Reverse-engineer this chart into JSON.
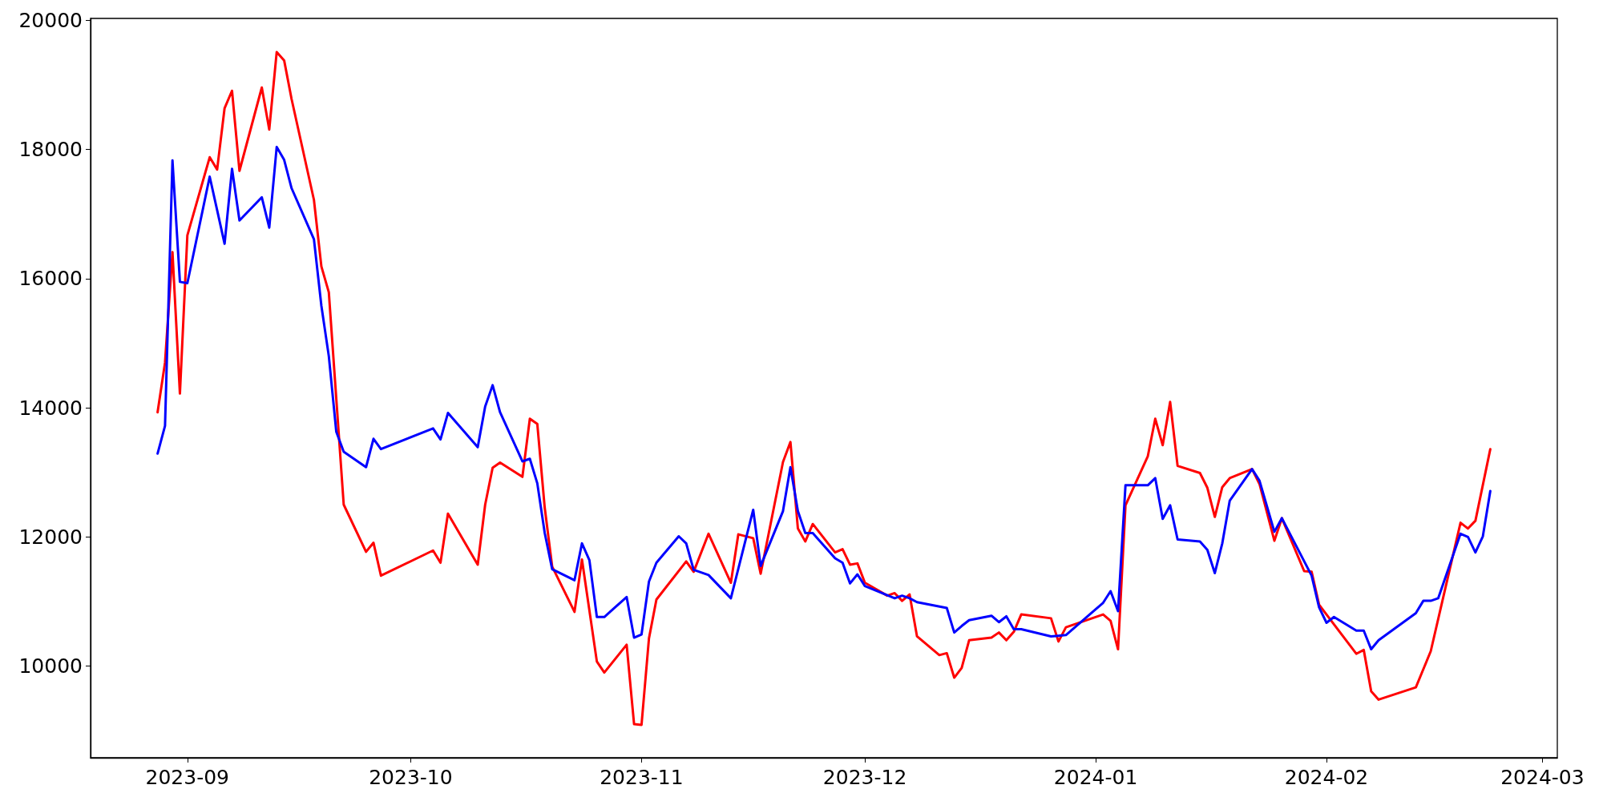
{
  "chart_data": {
    "type": "line",
    "grid": false,
    "marker": "none",
    "line_style": "solid",
    "xlim": [
      "2023-08-19",
      "2024-03-03"
    ],
    "xticks": [
      {
        "value": "2023-09-01",
        "label": "2023-09"
      },
      {
        "value": "2023-10-01",
        "label": "2023-10"
      },
      {
        "value": "2023-11-01",
        "label": "2023-11"
      },
      {
        "value": "2023-12-01",
        "label": "2023-12"
      },
      {
        "value": "2024-01-01",
        "label": "2024-01"
      },
      {
        "value": "2024-02-01",
        "label": "2024-02"
      },
      {
        "value": "2024-03-01",
        "label": "2024-03"
      }
    ],
    "ylim": [
      8580,
      20030
    ],
    "yticks": [
      10000,
      12000,
      14000,
      16000,
      18000,
      20000
    ],
    "series": [
      {
        "color": "#ff0000",
        "x": [
          "2023-08-28",
          "2023-08-29",
          "2023-08-30",
          "2023-08-31",
          "2023-09-01",
          "2023-09-04",
          "2023-09-05",
          "2023-09-06",
          "2023-09-07",
          "2023-09-08",
          "2023-09-11",
          "2023-09-12",
          "2023-09-13",
          "2023-09-14",
          "2023-09-15",
          "2023-09-18",
          "2023-09-19",
          "2023-09-20",
          "2023-09-22",
          "2023-09-25",
          "2023-09-26",
          "2023-09-27",
          "2023-10-04",
          "2023-10-05",
          "2023-10-06",
          "2023-10-10",
          "2023-10-11",
          "2023-10-12",
          "2023-10-13",
          "2023-10-16",
          "2023-10-17",
          "2023-10-18",
          "2023-10-19",
          "2023-10-20",
          "2023-10-23",
          "2023-10-24",
          "2023-10-26",
          "2023-10-27",
          "2023-10-30",
          "2023-10-31",
          "2023-11-01",
          "2023-11-02",
          "2023-11-03",
          "2023-11-07",
          "2023-11-08",
          "2023-11-10",
          "2023-11-13",
          "2023-11-14",
          "2023-11-16",
          "2023-11-17",
          "2023-11-20",
          "2023-11-21",
          "2023-11-22",
          "2023-11-23",
          "2023-11-24",
          "2023-11-27",
          "2023-11-28",
          "2023-11-29",
          "2023-11-30",
          "2023-12-01",
          "2023-12-04",
          "2023-12-05",
          "2023-12-06",
          "2023-12-07",
          "2023-12-08",
          "2023-12-11",
          "2023-12-12",
          "2023-12-13",
          "2023-12-14",
          "2023-12-15",
          "2023-12-18",
          "2023-12-19",
          "2023-12-20",
          "2023-12-21",
          "2023-12-22",
          "2023-12-26",
          "2023-12-27",
          "2023-12-28",
          "2024-01-02",
          "2024-01-03",
          "2024-01-04",
          "2024-01-05",
          "2024-01-08",
          "2024-01-09",
          "2024-01-10",
          "2024-01-11",
          "2024-01-12",
          "2024-01-15",
          "2024-01-16",
          "2024-01-17",
          "2024-01-18",
          "2024-01-19",
          "2024-01-22",
          "2024-01-23",
          "2024-01-25",
          "2024-01-26",
          "2024-01-29",
          "2024-01-30",
          "2024-01-31",
          "2024-02-05",
          "2024-02-06",
          "2024-02-07",
          "2024-02-08",
          "2024-02-13",
          "2024-02-15",
          "2024-02-19",
          "2024-02-20",
          "2024-02-21",
          "2024-02-23"
        ],
        "values": [
          13930,
          14700,
          16410,
          14220,
          16670,
          17880,
          17690,
          18640,
          18910,
          17670,
          18960,
          18310,
          19510,
          19380,
          18780,
          17220,
          16190,
          15790,
          12500,
          11770,
          11910,
          11400,
          11790,
          11600,
          12360,
          11570,
          12500,
          13070,
          13150,
          12930,
          13830,
          13750,
          12450,
          11540,
          10840,
          11650,
          10070,
          9900,
          10330,
          9100,
          9090,
          10430,
          11030,
          11620,
          11460,
          12050,
          11290,
          12040,
          11980,
          11430,
          13160,
          13470,
          12130,
          11930,
          12200,
          11760,
          11810,
          11570,
          11590,
          11290,
          11090,
          11130,
          11010,
          11110,
          10460,
          10170,
          10200,
          9820,
          9970,
          10400,
          10440,
          10520,
          10400,
          10530,
          10800,
          10740,
          10380,
          10600,
          10800,
          10700,
          10260,
          12490,
          13250,
          13830,
          13420,
          14090,
          13100,
          12990,
          12760,
          12310,
          12770,
          12910,
          13050,
          12820,
          11940,
          12290,
          11470,
          11460,
          10950,
          10190,
          10250,
          9610,
          9480,
          9670,
          10230,
          12220,
          12130,
          12250,
          13360
        ]
      },
      {
        "color": "#0000ff",
        "x": [
          "2023-08-28",
          "2023-08-29",
          "2023-08-30",
          "2023-08-31",
          "2023-09-01",
          "2023-09-04",
          "2023-09-05",
          "2023-09-06",
          "2023-09-07",
          "2023-09-08",
          "2023-09-11",
          "2023-09-12",
          "2023-09-13",
          "2023-09-14",
          "2023-09-15",
          "2023-09-18",
          "2023-09-19",
          "2023-09-20",
          "2023-09-21",
          "2023-09-22",
          "2023-09-25",
          "2023-09-26",
          "2023-09-27",
          "2023-10-04",
          "2023-10-05",
          "2023-10-06",
          "2023-10-10",
          "2023-10-11",
          "2023-10-12",
          "2023-10-13",
          "2023-10-16",
          "2023-10-17",
          "2023-10-18",
          "2023-10-19",
          "2023-10-20",
          "2023-10-23",
          "2023-10-24",
          "2023-10-25",
          "2023-10-26",
          "2023-10-27",
          "2023-10-30",
          "2023-10-31",
          "2023-11-01",
          "2023-11-02",
          "2023-11-03",
          "2023-11-06",
          "2023-11-07",
          "2023-11-08",
          "2023-11-10",
          "2023-11-13",
          "2023-11-16",
          "2023-11-17",
          "2023-11-20",
          "2023-11-21",
          "2023-11-22",
          "2023-11-23",
          "2023-11-24",
          "2023-11-27",
          "2023-11-28",
          "2023-11-29",
          "2023-11-30",
          "2023-12-01",
          "2023-12-05",
          "2023-12-06",
          "2023-12-07",
          "2023-12-08",
          "2023-12-12",
          "2023-12-13",
          "2023-12-14",
          "2023-12-15",
          "2023-12-18",
          "2023-12-19",
          "2023-12-20",
          "2023-12-21",
          "2023-12-22",
          "2023-12-26",
          "2023-12-27",
          "2023-12-28",
          "2024-01-02",
          "2024-01-03",
          "2024-01-04",
          "2024-01-05",
          "2024-01-08",
          "2024-01-09",
          "2024-01-10",
          "2024-01-11",
          "2024-01-12",
          "2024-01-15",
          "2024-01-16",
          "2024-01-17",
          "2024-01-18",
          "2024-01-19",
          "2024-01-22",
          "2024-01-23",
          "2024-01-25",
          "2024-01-26",
          "2024-01-30",
          "2024-01-31",
          "2024-02-01",
          "2024-02-02",
          "2024-02-05",
          "2024-02-06",
          "2024-02-07",
          "2024-02-08",
          "2024-02-13",
          "2024-02-14",
          "2024-02-15",
          "2024-02-16",
          "2024-02-19",
          "2024-02-20",
          "2024-02-21",
          "2024-02-22",
          "2024-02-23"
        ],
        "values": [
          13290,
          13720,
          17830,
          15950,
          15930,
          17580,
          17060,
          16540,
          17700,
          16900,
          17260,
          16790,
          18040,
          17840,
          17400,
          16610,
          15580,
          14800,
          13630,
          13320,
          13080,
          13520,
          13360,
          13680,
          13510,
          13920,
          13390,
          14020,
          14350,
          13930,
          13170,
          13210,
          12830,
          12060,
          11500,
          11330,
          11900,
          11640,
          10760,
          10760,
          11070,
          10440,
          10490,
          11310,
          11600,
          12010,
          11900,
          11490,
          11410,
          11050,
          12420,
          11550,
          12400,
          13080,
          12400,
          12060,
          12060,
          11670,
          11600,
          11280,
          11420,
          11240,
          11050,
          11090,
          11050,
          10990,
          10900,
          10520,
          10620,
          10710,
          10780,
          10680,
          10770,
          10570,
          10570,
          10460,
          10470,
          10480,
          10980,
          11160,
          10850,
          12800,
          12800,
          12910,
          12280,
          12490,
          11960,
          11930,
          11800,
          11440,
          11900,
          12560,
          13050,
          12870,
          12080,
          12290,
          11400,
          10910,
          10670,
          10760,
          10550,
          10550,
          10260,
          10400,
          10820,
          11010,
          11010,
          11050,
          12050,
          12000,
          11760,
          12010,
          12710
        ]
      }
    ]
  }
}
